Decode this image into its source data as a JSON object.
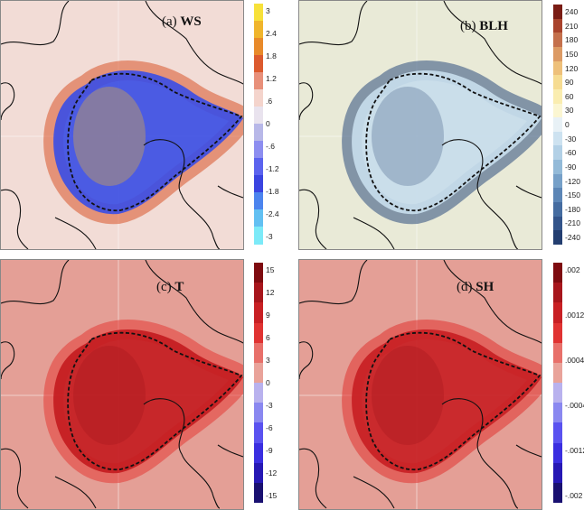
{
  "chart_data": [
    {
      "type": "heatmap",
      "panel_label": "(a)",
      "variable": "WS",
      "colorbar_ticks": [
        "3",
        "2.4",
        "1.8",
        "1.2",
        ".6",
        "0",
        "-.6",
        "-1.2",
        "-1.8",
        "-2.4",
        "-3"
      ],
      "colormap": [
        "#f7e13a",
        "#f0b52c",
        "#e88a2a",
        "#dc5a2e",
        "#e8907a",
        "#f4d4cc",
        "#e9e3ee",
        "#b8b8e8",
        "#8d8ef0",
        "#5b63ee",
        "#3a44e0",
        "#4c84ee",
        "#62c0f2",
        "#7ceaf8"
      ],
      "background": "#f2dcd6",
      "anomaly_core": "#3d4fe4",
      "anomaly_rim": "#d9552c"
    },
    {
      "type": "heatmap",
      "panel_label": "(b)",
      "variable": "BLH",
      "colorbar_ticks": [
        "240",
        "210",
        "180",
        "150",
        "120",
        "90",
        "60",
        "30",
        "0",
        "-30",
        "-60",
        "-90",
        "-120",
        "-150",
        "-180",
        "-210",
        "-240"
      ],
      "colormap": [
        "#7a1c14",
        "#a8432c",
        "#c4704c",
        "#dc9a64",
        "#eec07a",
        "#f6dc92",
        "#faedb0",
        "#fbf6d2",
        "#e8f1f6",
        "#cde2f0",
        "#b2d0e6",
        "#93bad8",
        "#76a0c8",
        "#5c86b6",
        "#456ca0",
        "#33548a",
        "#233e70"
      ],
      "background": "#e9ead7",
      "anomaly_core": "#c7dceb",
      "anomaly_rim": "#2e4d7e"
    },
    {
      "type": "heatmap",
      "panel_label": "(c)",
      "variable": "T",
      "colorbar_ticks": [
        "15",
        "12",
        "9",
        "6",
        "3",
        "0",
        "-3",
        "-6",
        "-9",
        "-12",
        "-15"
      ],
      "colormap": [
        "#7e0b10",
        "#a7161c",
        "#c82024",
        "#e03332",
        "#e8706a",
        "#e9a39a",
        "#b9b2ee",
        "#8a88f0",
        "#5a52f0",
        "#3a2ee0",
        "#2618b4",
        "#191070"
      ],
      "background": "#e49f96",
      "anomaly_core": "#c41c21",
      "anomaly_rim": "#e33a36"
    },
    {
      "type": "heatmap",
      "panel_label": "(d)",
      "variable": "SH",
      "colorbar_ticks": [
        ".002",
        ".0012",
        ".0004",
        "-.0004",
        "-.0012",
        "-.002"
      ],
      "colormap": [
        "#7e0b10",
        "#a7161c",
        "#c82024",
        "#e03332",
        "#e8706a",
        "#e9a39a",
        "#b9b2ee",
        "#8a88f0",
        "#5a52f0",
        "#3a2ee0",
        "#2618b4",
        "#191070"
      ],
      "background": "#e49f96",
      "anomaly_core": "#c82024",
      "anomaly_rim": "#e03332"
    }
  ]
}
